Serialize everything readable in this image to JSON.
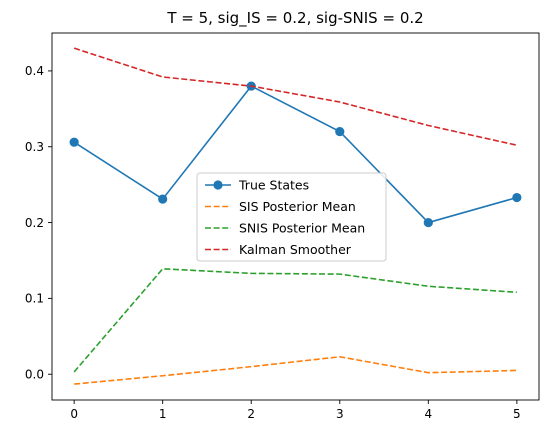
{
  "chart_data": {
    "type": "line",
    "title": "T = 5, sig_IS = 0.2, sig-SNIS = 0.2",
    "xlabel": "",
    "ylabel": "",
    "x": [
      0,
      1,
      2,
      3,
      4,
      5
    ],
    "xlim": [
      -0.25,
      5.25
    ],
    "ylim": [
      -0.034,
      0.45
    ],
    "xticks": [
      0,
      1,
      2,
      3,
      4,
      5
    ],
    "yticks": [
      0.0,
      0.1,
      0.2,
      0.3,
      0.4
    ],
    "ytick_labels": [
      "0.0",
      "0.1",
      "0.2",
      "0.3",
      "0.4"
    ],
    "grid": false,
    "legend_position": "center",
    "series": [
      {
        "name": "True States",
        "values": [
          0.306,
          0.231,
          0.38,
          0.32,
          0.2,
          0.233
        ],
        "color": "#1f77b4",
        "style": "solid",
        "marker": "circle"
      },
      {
        "name": "SIS Posterior Mean",
        "values": [
          -0.013,
          -0.002,
          0.01,
          0.023,
          0.002,
          0.005
        ],
        "color": "#ff7f0e",
        "style": "dashed",
        "marker": "none"
      },
      {
        "name": "SNIS Posterior Mean",
        "values": [
          0.003,
          0.139,
          0.133,
          0.132,
          0.116,
          0.108
        ],
        "color": "#2ca02c",
        "style": "dashed",
        "marker": "none"
      },
      {
        "name": "Kalman Smoother",
        "values": [
          0.43,
          0.392,
          0.38,
          0.359,
          0.328,
          0.302
        ],
        "color": "#d62728",
        "style": "dashed",
        "marker": "none"
      }
    ]
  }
}
